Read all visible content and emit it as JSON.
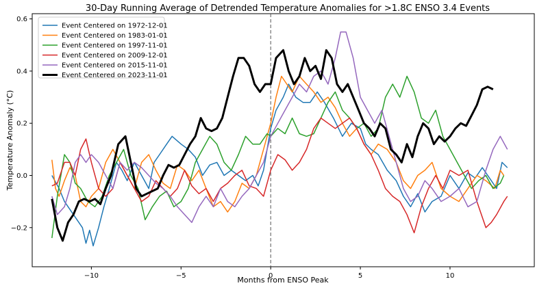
{
  "chart_data": {
    "type": "line",
    "title": "30-Day Running Average of Detrended Temperature Anomalies for >1.8C ENSO 3.4 Events",
    "xlabel": "Months from ENSO Peak",
    "ylabel": "Temperature Anomaly (°C)",
    "xlim": [
      -13.3,
      14.7
    ],
    "ylim": [
      -0.35,
      0.62
    ],
    "x_ticks": [
      -10,
      -5,
      0,
      5,
      10
    ],
    "x_tick_labels": [
      "−10",
      "−5",
      "0",
      "5",
      "10"
    ],
    "y_ticks": [
      -0.2,
      0.0,
      0.2,
      0.4,
      0.6
    ],
    "y_tick_labels": [
      "−0.2",
      "0.0",
      "0.2",
      "0.4",
      "0.6"
    ],
    "grid": false,
    "legend_position": "top-left",
    "vertical_reference_line": {
      "x": 0,
      "style": "dashed",
      "color": "#555555"
    },
    "series": [
      {
        "name": "Event Centered on 1972-12-01",
        "color": "#1f77b4",
        "bold": false,
        "x": [
          -12.2,
          -11.8,
          -11.5,
          -11,
          -10.5,
          -10.3,
          -10.1,
          -9.9,
          -9.6,
          -9.3,
          -9,
          -8.6,
          -8.3,
          -8,
          -7.6,
          -7.2,
          -6.8,
          -6.5,
          -6.2,
          -5.8,
          -5.5,
          -5,
          -4.6,
          -4.2,
          -3.8,
          -3.4,
          -3,
          -2.6,
          -2.2,
          -1.8,
          -1.4,
          -1,
          -0.7,
          -0.4,
          0,
          0.3,
          0.7,
          1,
          1.4,
          1.8,
          2.2,
          2.6,
          3,
          3.5,
          4,
          4.5,
          5,
          5.3,
          5.6,
          6,
          6.5,
          7,
          7.4,
          7.8,
          8.2,
          8.6,
          9,
          9.5,
          10,
          10.5,
          11,
          11.4,
          11.8,
          12.2,
          12.6,
          12.9,
          13.2
        ],
        "y": [
          0.0,
          -0.05,
          -0.1,
          -0.15,
          -0.2,
          -0.26,
          -0.21,
          -0.27,
          -0.2,
          -0.12,
          -0.05,
          0.05,
          0.02,
          -0.02,
          0.05,
          0.0,
          -0.05,
          0.05,
          0.08,
          0.12,
          0.15,
          0.12,
          0.1,
          0.07,
          0.0,
          0.04,
          0.05,
          0.0,
          0.02,
          0.0,
          -0.02,
          0.0,
          -0.04,
          0.02,
          0.18,
          0.25,
          0.3,
          0.35,
          0.3,
          0.28,
          0.28,
          0.32,
          0.28,
          0.22,
          0.15,
          0.2,
          0.18,
          0.12,
          0.1,
          0.08,
          0.02,
          -0.02,
          -0.08,
          -0.12,
          -0.07,
          -0.14,
          -0.1,
          -0.08,
          0.0,
          -0.05,
          0.01,
          -0.01,
          0.03,
          -0.01,
          -0.05,
          0.05,
          0.03
        ]
      },
      {
        "name": "Event Centered on 1983-01-01",
        "color": "#ff7f0e",
        "bold": false,
        "x": [
          -12.2,
          -12,
          -11.8,
          -11.5,
          -11.2,
          -10.9,
          -10.6,
          -10.3,
          -10,
          -9.6,
          -9.2,
          -8.8,
          -8.4,
          -8,
          -7.6,
          -7.2,
          -6.8,
          -6.4,
          -6,
          -5.6,
          -5.2,
          -4.8,
          -4.4,
          -4,
          -3.6,
          -3.2,
          -2.8,
          -2.4,
          -2,
          -1.6,
          -1.2,
          -0.8,
          -0.4,
          0,
          0.3,
          0.6,
          0.9,
          1.2,
          1.6,
          2,
          2.4,
          2.8,
          3.2,
          3.6,
          4,
          4.4,
          4.8,
          5.2,
          5.6,
          6,
          6.5,
          7,
          7.4,
          7.8,
          8.2,
          8.6,
          9,
          9.5,
          10,
          10.5,
          11,
          11.5,
          12,
          12.5,
          12.8,
          13
        ],
        "y": [
          0.06,
          -0.05,
          -0.08,
          -0.02,
          0.03,
          0.0,
          -0.1,
          -0.12,
          -0.08,
          -0.05,
          0.05,
          0.1,
          0.05,
          0.0,
          -0.05,
          0.05,
          0.08,
          0.02,
          -0.03,
          -0.05,
          0.04,
          0.02,
          -0.02,
          0.02,
          -0.05,
          -0.12,
          -0.1,
          -0.14,
          -0.1,
          -0.03,
          -0.05,
          0.0,
          0.1,
          0.2,
          0.3,
          0.38,
          0.35,
          0.32,
          0.38,
          0.35,
          0.32,
          0.28,
          0.3,
          0.26,
          0.2,
          0.15,
          0.18,
          0.12,
          0.08,
          0.12,
          0.1,
          0.05,
          -0.02,
          -0.05,
          0.0,
          0.02,
          0.05,
          -0.05,
          -0.08,
          -0.1,
          -0.05,
          0.0,
          -0.02,
          -0.05,
          0.02,
          0.0
        ]
      },
      {
        "name": "Event Centered on 1997-11-01",
        "color": "#2ca02c",
        "bold": false,
        "x": [
          -12.2,
          -11.9,
          -11.5,
          -11.2,
          -10.9,
          -10.6,
          -10.2,
          -9.8,
          -9.4,
          -9,
          -8.6,
          -8.2,
          -7.8,
          -7.4,
          -7,
          -6.6,
          -6.2,
          -5.8,
          -5.4,
          -5,
          -4.6,
          -4.2,
          -3.8,
          -3.4,
          -3,
          -2.6,
          -2.2,
          -1.8,
          -1.4,
          -1,
          -0.6,
          -0.2,
          0,
          0.4,
          0.8,
          1.2,
          1.6,
          2,
          2.4,
          2.8,
          3.2,
          3.6,
          4,
          4.4,
          4.8,
          5.2,
          5.6,
          6,
          6.4,
          6.8,
          7.2,
          7.6,
          8,
          8.4,
          8.8,
          9.2,
          9.6,
          10,
          10.4,
          10.8,
          11.2,
          11.6,
          12,
          12.4,
          12.8,
          13
        ],
        "y": [
          -0.24,
          -0.08,
          0.08,
          0.05,
          -0.03,
          -0.05,
          -0.1,
          -0.12,
          -0.08,
          0.0,
          0.05,
          0.1,
          0.0,
          -0.05,
          -0.17,
          -0.12,
          -0.08,
          -0.06,
          -0.12,
          -0.1,
          -0.05,
          0.05,
          0.1,
          0.15,
          0.12,
          0.05,
          0.02,
          0.08,
          0.15,
          0.12,
          0.12,
          0.16,
          0.15,
          0.18,
          0.16,
          0.22,
          0.16,
          0.15,
          0.16,
          0.22,
          0.28,
          0.32,
          0.25,
          0.22,
          0.18,
          0.2,
          0.15,
          0.18,
          0.3,
          0.35,
          0.3,
          0.38,
          0.32,
          0.22,
          0.2,
          0.25,
          0.15,
          0.1,
          0.05,
          0.0,
          -0.05,
          -0.02,
          0.0,
          -0.05,
          -0.03,
          0.0
        ]
      },
      {
        "name": "Event Centered on 2009-12-01",
        "color": "#d62728",
        "bold": false,
        "x": [
          -12.2,
          -11.9,
          -11.5,
          -11.2,
          -10.9,
          -10.6,
          -10.3,
          -10,
          -9.6,
          -9.2,
          -8.8,
          -8.4,
          -8,
          -7.6,
          -7.2,
          -6.8,
          -6.4,
          -6,
          -5.6,
          -5.2,
          -4.8,
          -4.4,
          -4,
          -3.6,
          -3.2,
          -2.8,
          -2.4,
          -2,
          -1.6,
          -1.2,
          -0.8,
          -0.4,
          0,
          0.4,
          0.8,
          1.2,
          1.6,
          2,
          2.4,
          2.8,
          3.2,
          3.6,
          4,
          4.4,
          4.8,
          5.2,
          5.6,
          6,
          6.4,
          6.8,
          7.2,
          7.6,
          8,
          8.4,
          8.8,
          9.2,
          9.6,
          10,
          10.5,
          11,
          11.5,
          12,
          12.3,
          12.6,
          13,
          13.2
        ],
        "y": [
          -0.04,
          -0.03,
          0.05,
          0.05,
          0.0,
          0.1,
          0.14,
          0.05,
          -0.05,
          -0.08,
          -0.05,
          0.05,
          0.0,
          -0.05,
          -0.1,
          -0.08,
          -0.02,
          -0.05,
          -0.08,
          -0.05,
          0.02,
          -0.04,
          -0.07,
          -0.05,
          -0.1,
          -0.05,
          -0.03,
          0.0,
          0.02,
          -0.04,
          -0.05,
          -0.08,
          0.02,
          0.08,
          0.06,
          0.02,
          0.05,
          0.1,
          0.18,
          0.22,
          0.2,
          0.18,
          0.2,
          0.22,
          0.18,
          0.12,
          0.08,
          0.02,
          -0.05,
          -0.08,
          -0.1,
          -0.15,
          -0.22,
          -0.12,
          -0.05,
          0.0,
          -0.05,
          0.02,
          0.0,
          0.02,
          -0.1,
          -0.2,
          -0.18,
          -0.15,
          -0.1,
          -0.08
        ]
      },
      {
        "name": "Event Centered on 2015-11-01",
        "color": "#9467bd",
        "bold": false,
        "x": [
          -12.2,
          -11.9,
          -11.5,
          -11.2,
          -10.9,
          -10.6,
          -10.3,
          -10,
          -9.6,
          -9.2,
          -8.8,
          -8.4,
          -8,
          -7.6,
          -7.2,
          -6.8,
          -6.4,
          -6,
          -5.6,
          -5.2,
          -4.8,
          -4.4,
          -4,
          -3.6,
          -3.2,
          -2.8,
          -2.4,
          -2,
          -1.6,
          -1.2,
          -0.8,
          -0.4,
          0,
          0.4,
          0.8,
          1.2,
          1.6,
          2,
          2.4,
          2.8,
          3.2,
          3.6,
          3.9,
          4.2,
          4.6,
          5,
          5.4,
          5.8,
          6.2,
          6.6,
          7,
          7.4,
          7.8,
          8.2,
          8.6,
          9,
          9.5,
          10,
          10.5,
          11,
          11.5,
          12,
          12.4,
          12.8,
          13.2
        ],
        "y": [
          -0.08,
          -0.15,
          -0.12,
          -0.05,
          0.05,
          0.08,
          0.05,
          0.08,
          0.05,
          0.0,
          -0.05,
          0.05,
          0.02,
          0.05,
          0.03,
          0.0,
          -0.03,
          -0.05,
          -0.08,
          -0.12,
          -0.15,
          -0.18,
          -0.12,
          -0.08,
          -0.12,
          -0.05,
          -0.1,
          -0.12,
          -0.08,
          -0.05,
          0.0,
          0.05,
          0.15,
          0.2,
          0.25,
          0.3,
          0.35,
          0.32,
          0.38,
          0.4,
          0.35,
          0.45,
          0.55,
          0.55,
          0.45,
          0.3,
          0.25,
          0.2,
          0.25,
          0.15,
          0.05,
          -0.05,
          -0.1,
          -0.08,
          -0.02,
          -0.05,
          -0.1,
          -0.08,
          -0.05,
          -0.12,
          -0.1,
          0.02,
          0.1,
          0.15,
          0.1
        ]
      },
      {
        "name": "Event Centered on 2023-11-01",
        "color": "#000000",
        "bold": true,
        "x": [
          -12.2,
          -11.9,
          -11.6,
          -11.3,
          -11,
          -10.7,
          -10.4,
          -10.1,
          -9.8,
          -9.5,
          -9.2,
          -8.9,
          -8.5,
          -8.1,
          -7.8,
          -7.5,
          -7.2,
          -6.9,
          -6.6,
          -6.3,
          -6,
          -5.7,
          -5.4,
          -5.1,
          -4.8,
          -4.5,
          -4.2,
          -3.9,
          -3.6,
          -3.3,
          -3,
          -2.7,
          -2.4,
          -2.1,
          -1.8,
          -1.5,
          -1.2,
          -0.9,
          -0.6,
          -0.3,
          0,
          0.3,
          0.7,
          1,
          1.3,
          1.6,
          1.9,
          2.2,
          2.5,
          2.8,
          3.1,
          3.4,
          3.7,
          4,
          4.3,
          4.6,
          4.9,
          5.2,
          5.5,
          5.8,
          6.1,
          6.4,
          6.7,
          7,
          7.3,
          7.6,
          7.9,
          8.2,
          8.5,
          8.8,
          9.1,
          9.4,
          9.7,
          10,
          10.3,
          10.6,
          10.9,
          11.2,
          11.5,
          11.8,
          12.1,
          12.4
        ],
        "y": [
          -0.09,
          -0.2,
          -0.25,
          -0.18,
          -0.15,
          -0.1,
          -0.09,
          -0.1,
          -0.09,
          -0.11,
          -0.05,
          0.0,
          0.12,
          0.15,
          0.05,
          -0.05,
          -0.08,
          -0.07,
          -0.06,
          -0.05,
          0.0,
          0.04,
          0.03,
          0.04,
          0.08,
          0.12,
          0.15,
          0.22,
          0.18,
          0.17,
          0.18,
          0.22,
          0.3,
          0.38,
          0.45,
          0.45,
          0.42,
          0.35,
          0.32,
          0.35,
          0.35,
          0.45,
          0.48,
          0.4,
          0.35,
          0.38,
          0.45,
          0.4,
          0.42,
          0.37,
          0.48,
          0.45,
          0.35,
          0.32,
          0.35,
          0.3,
          0.25,
          0.2,
          0.18,
          0.15,
          0.2,
          0.18,
          0.1,
          0.08,
          0.05,
          0.12,
          0.07,
          0.15,
          0.2,
          0.18,
          0.12,
          0.15,
          0.13,
          0.15,
          0.18,
          0.2,
          0.19,
          0.23,
          0.27,
          0.33,
          0.34,
          0.33
        ]
      }
    ]
  }
}
